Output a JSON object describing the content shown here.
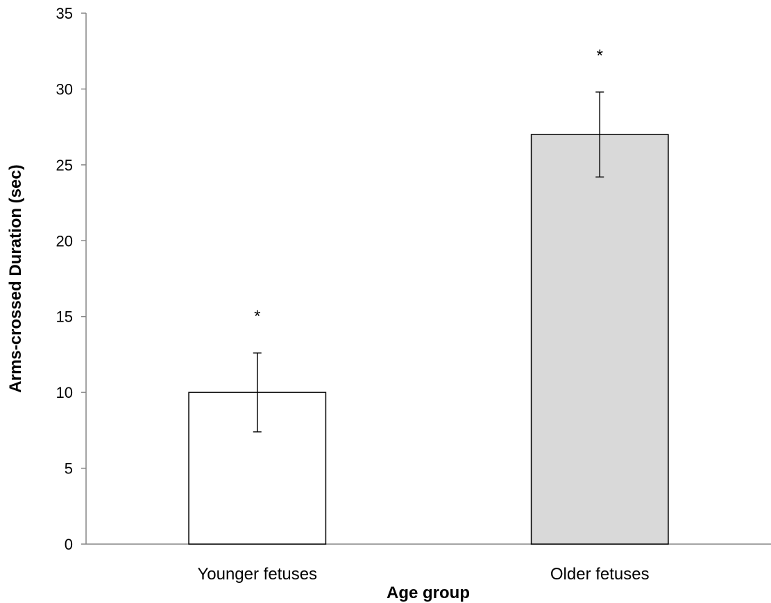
{
  "chart_data": {
    "type": "bar",
    "title": "",
    "xlabel": "Age group",
    "ylabel": "Arms-crossed  Duration (sec)",
    "ylim": [
      0,
      35
    ],
    "yticks": [
      0,
      5,
      10,
      15,
      20,
      25,
      30,
      35
    ],
    "grid": false,
    "categories": [
      "Younger fetuses",
      "Older fetuses"
    ],
    "values": [
      10.0,
      27.0
    ],
    "error_bars": [
      2.6,
      2.8
    ],
    "annotations": [
      "*",
      "*"
    ],
    "colors": {
      "bars": [
        "#ffffff",
        "#d9d9d9"
      ],
      "bar_stroke": "#000000",
      "axis": "#868686",
      "error_bar": "#000000"
    }
  }
}
